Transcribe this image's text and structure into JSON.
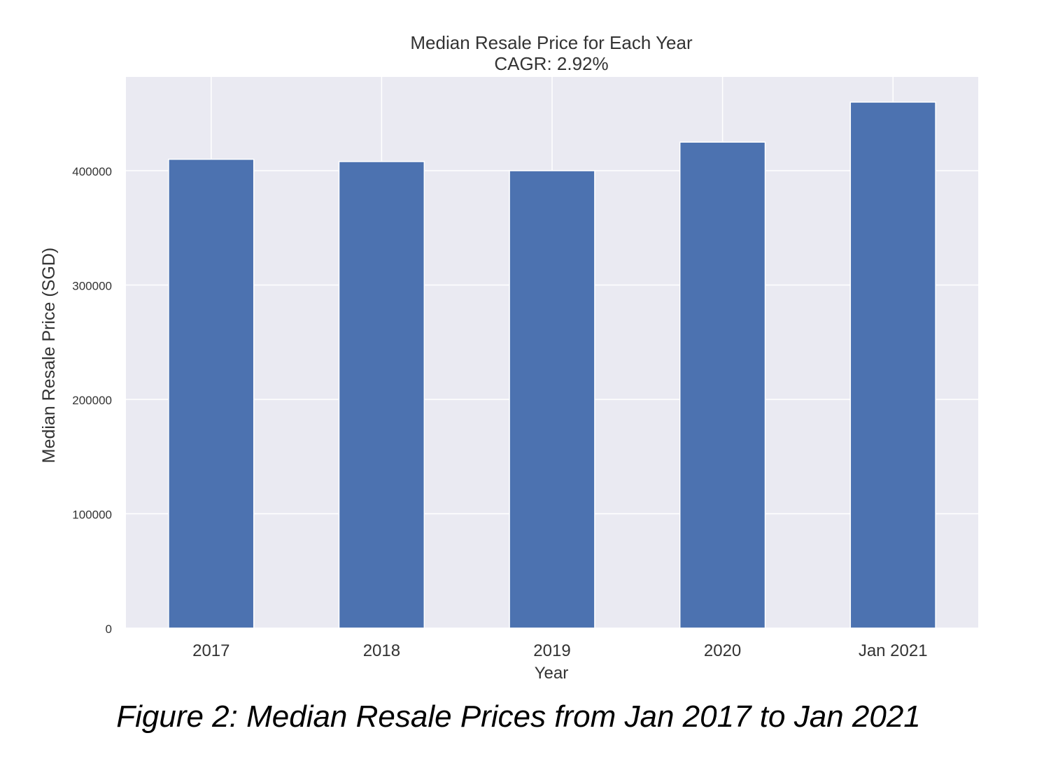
{
  "figure_caption": "Figure 2: Median Resale Prices from Jan 2017 to Jan 2021",
  "chart_data": {
    "type": "bar",
    "title": "Median Resale Price for Each Year",
    "subtitle": "CAGR: 2.92%",
    "xlabel": "Year",
    "ylabel": "Median Resale Price (SGD)",
    "categories": [
      "2017",
      "2018",
      "2019",
      "2020",
      "Jan 2021"
    ],
    "values": [
      410000,
      408000,
      400000,
      425000,
      460000
    ],
    "ylim": [
      0,
      482000
    ],
    "yticks": [
      0,
      100000,
      200000,
      300000,
      400000
    ],
    "ytick_labels": [
      "0",
      "100000",
      "200000",
      "300000",
      "400000"
    ],
    "grid": true,
    "colors": {
      "bar": "#4c72b0",
      "background": "#eaeaf2",
      "grid": "#ffffff"
    }
  }
}
